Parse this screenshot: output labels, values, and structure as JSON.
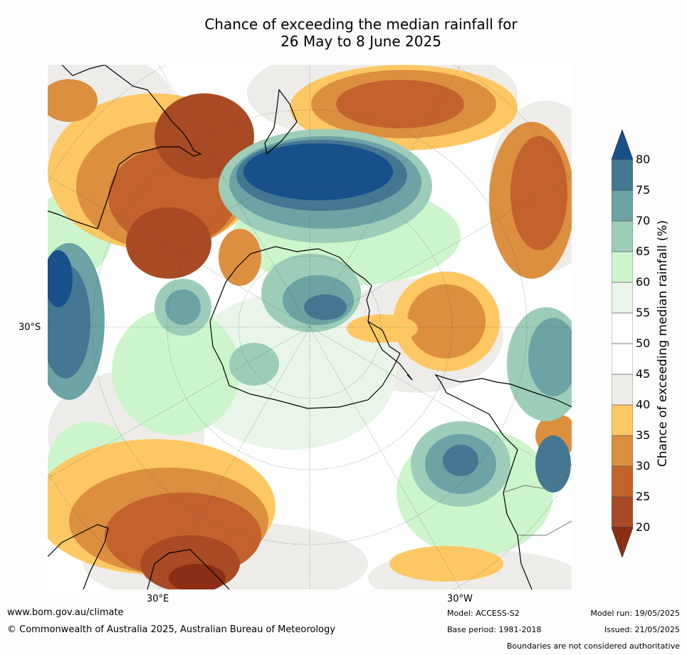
{
  "title_line1": "Chance of exceeding the median rainfall for",
  "title_line2": "26 May to 8 June 2025",
  "map": {
    "lat_label_left": "30°S",
    "lon_label_bottom_left": "30°E",
    "lon_label_bottom_right": "30°W",
    "projection": "south polar",
    "region_labels_visible": false
  },
  "colorbar": {
    "label": "Chance of exceeding median rainfall (%)",
    "ticks": [
      "20",
      "25",
      "30",
      "35",
      "40",
      "45",
      "50",
      "55",
      "60",
      "65",
      "70",
      "75",
      "80"
    ],
    "bins": [
      {
        "range": "<20",
        "color": "#8b2e16"
      },
      {
        "range": "20-25",
        "color": "#a84a24"
      },
      {
        "range": "25-30",
        "color": "#c4622e"
      },
      {
        "range": "30-35",
        "color": "#dc8f3f"
      },
      {
        "range": "35-40",
        "color": "#fdc864"
      },
      {
        "range": "40-45",
        "color": "#eeece9"
      },
      {
        "range": "45-50",
        "color": "#ffffff"
      },
      {
        "range": "50-55",
        "color": "#ffffff"
      },
      {
        "range": "55-60",
        "color": "#e8f5e8"
      },
      {
        "range": "60-65",
        "color": "#ccf5cc"
      },
      {
        "range": "65-70",
        "color": "#9dcdb8"
      },
      {
        "range": "70-75",
        "color": "#6ca3a5"
      },
      {
        "range": "75-80",
        "color": "#447792"
      },
      {
        "range": ">80",
        "color": "#17508a"
      }
    ]
  },
  "footer": {
    "website": "www.bom.gov.au/climate",
    "copyright": "© Commonwealth of Australia 2025, Australian Bureau of Meteorology",
    "model": "Model: ACCESS-S2",
    "base_period": "Base period: 1981-2018",
    "model_run": "Model run: 19/05/2025",
    "issued": "Issued: 21/05/2025",
    "disclaimer": "Boundaries are not considered authoritative"
  }
}
